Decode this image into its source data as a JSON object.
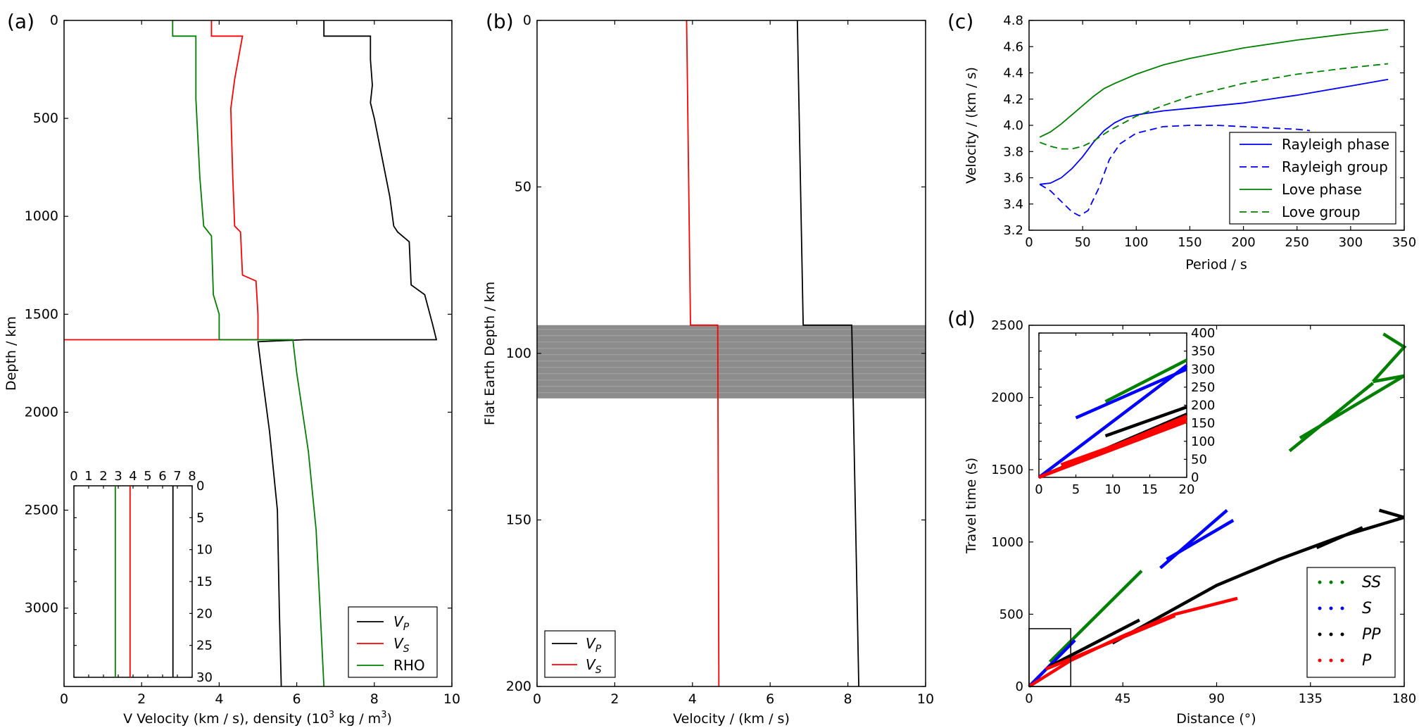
{
  "chart_data": [
    {
      "id": "a",
      "panel_label": "(a)",
      "type": "line",
      "xlabel": "V  Velocity (km / s),  density (10³ kg / m³)",
      "ylabel": "Depth / km",
      "xlim": [
        0,
        10
      ],
      "ylim": [
        3400,
        0
      ],
      "xticks": [
        0,
        2,
        4,
        6,
        8,
        10
      ],
      "yticks": [
        0,
        500,
        1000,
        1500,
        2000,
        2500,
        3000
      ],
      "legend_position": "lower right",
      "series": [
        {
          "name": "VP",
          "label_main": "V",
          "label_sub": "P",
          "color": "#000000",
          "points": [
            [
              6.7,
              0
            ],
            [
              6.7,
              80
            ],
            [
              7.9,
              80
            ],
            [
              7.9,
              200
            ],
            [
              7.95,
              330
            ],
            [
              7.9,
              420
            ],
            [
              8.0,
              500
            ],
            [
              8.2,
              700
            ],
            [
              8.4,
              900
            ],
            [
              8.5,
              1050
            ],
            [
              8.6,
              1080
            ],
            [
              8.9,
              1130
            ],
            [
              8.95,
              1350
            ],
            [
              9.3,
              1400
            ],
            [
              9.5,
              1550
            ],
            [
              9.6,
              1630
            ],
            [
              6.2,
              1630
            ],
            [
              5.0,
              1640
            ],
            [
              5.1,
              1800
            ],
            [
              5.3,
              2100
            ],
            [
              5.5,
              2500
            ],
            [
              5.55,
              3000
            ],
            [
              5.6,
              3400
            ]
          ]
        },
        {
          "name": "VS",
          "label_main": "V",
          "label_sub": "S",
          "color": "#ff0000",
          "points": [
            [
              3.8,
              0
            ],
            [
              3.8,
              80
            ],
            [
              4.6,
              80
            ],
            [
              4.4,
              300
            ],
            [
              4.3,
              450
            ],
            [
              4.35,
              800
            ],
            [
              4.4,
              1050
            ],
            [
              4.55,
              1080
            ],
            [
              4.6,
              1300
            ],
            [
              4.95,
              1330
            ],
            [
              5.0,
              1500
            ],
            [
              5.0,
              1630
            ],
            [
              0,
              1630
            ]
          ]
        },
        {
          "name": "RHO",
          "label_main": "RHO",
          "label_sub": "",
          "color": "#008000",
          "points": [
            [
              2.8,
              0
            ],
            [
              2.8,
              80
            ],
            [
              3.4,
              80
            ],
            [
              3.4,
              400
            ],
            [
              3.5,
              800
            ],
            [
              3.6,
              1050
            ],
            [
              3.8,
              1100
            ],
            [
              3.85,
              1400
            ],
            [
              4.0,
              1500
            ],
            [
              4.0,
              1630
            ],
            [
              5.9,
              1630
            ],
            [
              6.0,
              1800
            ],
            [
              6.3,
              2200
            ],
            [
              6.5,
              2600
            ],
            [
              6.6,
              3000
            ],
            [
              6.7,
              3400
            ]
          ]
        }
      ],
      "inset": {
        "xlim": [
          0,
          8
        ],
        "ylim": [
          30,
          0
        ],
        "xticks": [
          0,
          1,
          2,
          3,
          4,
          5,
          6,
          7,
          8
        ],
        "yticks": [
          0,
          5,
          10,
          15,
          20,
          25,
          30
        ],
        "series": [
          {
            "name": "VP",
            "x": 6.7,
            "color": "#000000"
          },
          {
            "name": "VS",
            "x": 3.8,
            "color": "#ff0000"
          },
          {
            "name": "RHO",
            "x": 2.8,
            "color": "#008000"
          }
        ]
      }
    },
    {
      "id": "b",
      "panel_label": "(b)",
      "type": "line",
      "xlabel": "Velocity / (km / s)",
      "ylabel": "Flat Earth Depth / km",
      "xlim": [
        0,
        10
      ],
      "ylim": [
        200,
        0
      ],
      "xticks": [
        0,
        2,
        4,
        6,
        8,
        10
      ],
      "yticks": [
        0,
        50,
        100,
        150,
        200
      ],
      "shaded_band": [
        91.5,
        113.5
      ],
      "band_color": "#8c8c8c",
      "legend_position": "lower left",
      "series": [
        {
          "name": "VP",
          "label_main": "V",
          "label_sub": "P",
          "color": "#000000",
          "points": [
            [
              6.7,
              0
            ],
            [
              6.85,
              91.5
            ],
            [
              8.1,
              91.5
            ],
            [
              8.28,
              200
            ]
          ]
        },
        {
          "name": "VS",
          "label_main": "V",
          "label_sub": "S",
          "color": "#ff0000",
          "points": [
            [
              3.85,
              0
            ],
            [
              3.95,
              91.5
            ],
            [
              4.65,
              91.5
            ],
            [
              4.68,
              200
            ]
          ]
        }
      ]
    },
    {
      "id": "c",
      "panel_label": "(c)",
      "type": "line",
      "xlabel": "Period / s",
      "ylabel": "Velocity / (km / s)",
      "xlim": [
        0,
        350
      ],
      "ylim": [
        3.2,
        4.8
      ],
      "xticks": [
        0,
        50,
        100,
        150,
        200,
        250,
        300,
        350
      ],
      "yticks": [
        3.2,
        3.4,
        3.6,
        3.8,
        4.0,
        4.2,
        4.4,
        4.6,
        4.8
      ],
      "legend_position": "lower right",
      "series": [
        {
          "name": "Rayleigh phase",
          "color": "#0000ff",
          "dash": "none",
          "points": [
            [
              10,
              3.55
            ],
            [
              20,
              3.56
            ],
            [
              30,
              3.6
            ],
            [
              40,
              3.67
            ],
            [
              50,
              3.76
            ],
            [
              60,
              3.87
            ],
            [
              70,
              3.96
            ],
            [
              80,
              4.02
            ],
            [
              90,
              4.06
            ],
            [
              100,
              4.08
            ],
            [
              125,
              4.11
            ],
            [
              150,
              4.13
            ],
            [
              200,
              4.17
            ],
            [
              250,
              4.23
            ],
            [
              300,
              4.3
            ],
            [
              335,
              4.35
            ]
          ]
        },
        {
          "name": "Rayleigh group",
          "color": "#0000ff",
          "dash": "10,6",
          "points": [
            [
              10,
              3.55
            ],
            [
              20,
              3.5
            ],
            [
              30,
              3.42
            ],
            [
              40,
              3.34
            ],
            [
              47,
              3.31
            ],
            [
              55,
              3.35
            ],
            [
              65,
              3.52
            ],
            [
              75,
              3.74
            ],
            [
              85,
              3.86
            ],
            [
              100,
              3.94
            ],
            [
              125,
              3.99
            ],
            [
              150,
              4.0
            ],
            [
              175,
              4.0
            ],
            [
              200,
              3.99
            ],
            [
              250,
              3.97
            ],
            [
              262,
              3.96
            ]
          ]
        },
        {
          "name": "Love phase",
          "color": "#008000",
          "dash": "none",
          "points": [
            [
              10,
              3.91
            ],
            [
              20,
              3.95
            ],
            [
              30,
              4.01
            ],
            [
              40,
              4.08
            ],
            [
              50,
              4.15
            ],
            [
              60,
              4.22
            ],
            [
              70,
              4.28
            ],
            [
              80,
              4.32
            ],
            [
              100,
              4.39
            ],
            [
              125,
              4.46
            ],
            [
              150,
              4.51
            ],
            [
              200,
              4.59
            ],
            [
              250,
              4.65
            ],
            [
              300,
              4.7
            ],
            [
              335,
              4.73
            ]
          ]
        },
        {
          "name": "Love group",
          "color": "#008000",
          "dash": "10,6",
          "points": [
            [
              10,
              3.87
            ],
            [
              20,
              3.84
            ],
            [
              30,
              3.82
            ],
            [
              40,
              3.82
            ],
            [
              50,
              3.84
            ],
            [
              60,
              3.88
            ],
            [
              75,
              3.96
            ],
            [
              100,
              4.07
            ],
            [
              125,
              4.15
            ],
            [
              150,
              4.22
            ],
            [
              200,
              4.32
            ],
            [
              250,
              4.39
            ],
            [
              300,
              4.44
            ],
            [
              335,
              4.47
            ]
          ]
        }
      ]
    },
    {
      "id": "d",
      "panel_label": "(d)",
      "type": "scatter",
      "xlabel": "Distance (°)",
      "ylabel": "Travel time (s)",
      "xlim": [
        0,
        180
      ],
      "ylim": [
        0,
        2500
      ],
      "xticks": [
        0,
        45,
        90,
        135,
        180
      ],
      "yticks": [
        0,
        500,
        1000,
        1500,
        2000,
        2500
      ],
      "legend_position": "lower right",
      "series": [
        {
          "name": "SS",
          "color": "#008000",
          "segments": [
            [
              [
                10,
                170
              ],
              [
                54,
                800
              ]
            ],
            [
              [
                125,
                1630
              ],
              [
                165,
                2100
              ]
            ],
            [
              [
                130,
                1720
              ],
              [
                180,
                2150
              ]
            ],
            [
              [
                170,
                2440
              ],
              [
                180,
                2350
              ],
              [
                165,
                2110
              ]
            ],
            [
              [
                165,
                2110
              ],
              [
                180,
                2150
              ]
            ]
          ]
        },
        {
          "name": "S",
          "color": "#0000ff",
          "segments": [
            [
              [
                0,
                0
              ],
              [
                22,
                320
              ]
            ],
            [
              [
                63,
                820
              ],
              [
                95,
                1220
              ]
            ],
            [
              [
                66,
                880
              ],
              [
                98,
                1150
              ]
            ]
          ]
        },
        {
          "name": "PP",
          "color": "#000000",
          "segments": [
            [
              [
                10,
                140
              ],
              [
                53,
                460
              ]
            ],
            [
              [
                40,
                300
              ],
              [
                90,
                700
              ],
              [
                120,
                880
              ],
              [
                150,
                1040
              ],
              [
                180,
                1170
              ]
            ],
            [
              [
                138,
                960
              ],
              [
                160,
                1100
              ]
            ],
            [
              [
                168,
                1220
              ],
              [
                180,
                1170
              ]
            ]
          ]
        },
        {
          "name": "P",
          "color": "#ff0000",
          "segments": [
            [
              [
                0,
                0
              ],
              [
                20,
                180
              ],
              [
                45,
                350
              ],
              [
                70,
                500
              ],
              [
                100,
                610
              ]
            ],
            [
              [
                8,
                120
              ],
              [
                70,
                490
              ]
            ]
          ]
        }
      ],
      "zoom_box": {
        "x": [
          0,
          20
        ],
        "y": [
          0,
          400
        ]
      },
      "inset": {
        "xlim": [
          0,
          20
        ],
        "ylim": [
          0,
          400
        ],
        "xticks": [
          0,
          5,
          10,
          15,
          20
        ],
        "yticks": [
          0,
          50,
          100,
          150,
          200,
          250,
          300,
          350,
          400
        ],
        "series": [
          {
            "name": "SS",
            "color": "#008000",
            "segments": [
              [
                [
                  9,
                  210
                ],
                [
                  20,
                  325
                ]
              ]
            ]
          },
          {
            "name": "S",
            "color": "#0000ff",
            "segments": [
              [
                [
                  0,
                  0
                ],
                [
                  20,
                  310
                ]
              ],
              [
                [
                  5,
                  165
                ],
                [
                  20,
                  300
                ]
              ]
            ]
          },
          {
            "name": "PP",
            "color": "#000000",
            "segments": [
              [
                [
                  9,
                  115
                ],
                [
                  20,
                  195
                ]
              ],
              [
                [
                  0,
                  0
                ],
                [
                  20,
                  175
                ]
              ]
            ]
          },
          {
            "name": "P",
            "color": "#ff0000",
            "segments": [
              [
                [
                  0,
                  0
                ],
                [
                  20,
                  170
                ]
              ],
              [
                [
                  0,
                  0
                ],
                [
                  20,
                  155
                ]
              ],
              [
                [
                  3,
                  35
                ],
                [
                  20,
                  160
                ]
              ]
            ]
          }
        ]
      }
    }
  ]
}
